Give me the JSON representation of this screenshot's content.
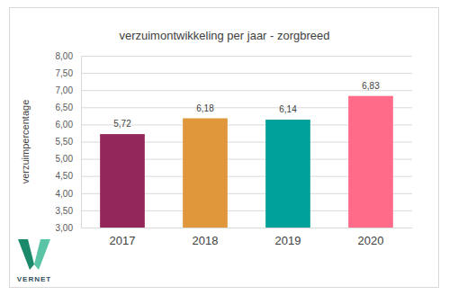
{
  "chart_data": {
    "type": "bar",
    "title": "verzuimontwikkeling per jaar - zorgbreed",
    "y_label": "verzuimpercentage",
    "categories": [
      "2017",
      "2018",
      "2019",
      "2020"
    ],
    "values": [
      5.72,
      6.18,
      6.14,
      6.83
    ],
    "value_labels": [
      "5,72",
      "6,18",
      "6,14",
      "6,83"
    ],
    "colors": [
      "#93265a",
      "#e0963a",
      "#00a19b",
      "#ff6b88"
    ],
    "ylim": [
      3,
      8
    ],
    "yticks": [
      {
        "value": 3,
        "label": "3,00"
      },
      {
        "value": 3.5,
        "label": "3,50"
      },
      {
        "value": 4,
        "label": "4,00"
      },
      {
        "value": 4.5,
        "label": "4,50"
      },
      {
        "value": 5,
        "label": "5,00"
      },
      {
        "value": 5.5,
        "label": "5,50"
      },
      {
        "value": 6,
        "label": "6,00"
      },
      {
        "value": 6.5,
        "label": "6,50"
      },
      {
        "value": 7,
        "label": "7,00"
      },
      {
        "value": 7.5,
        "label": "7,50"
      },
      {
        "value": 8,
        "label": "8,00"
      }
    ],
    "grid": true,
    "data_labels": true,
    "annotations": [
      "VERNET"
    ]
  }
}
